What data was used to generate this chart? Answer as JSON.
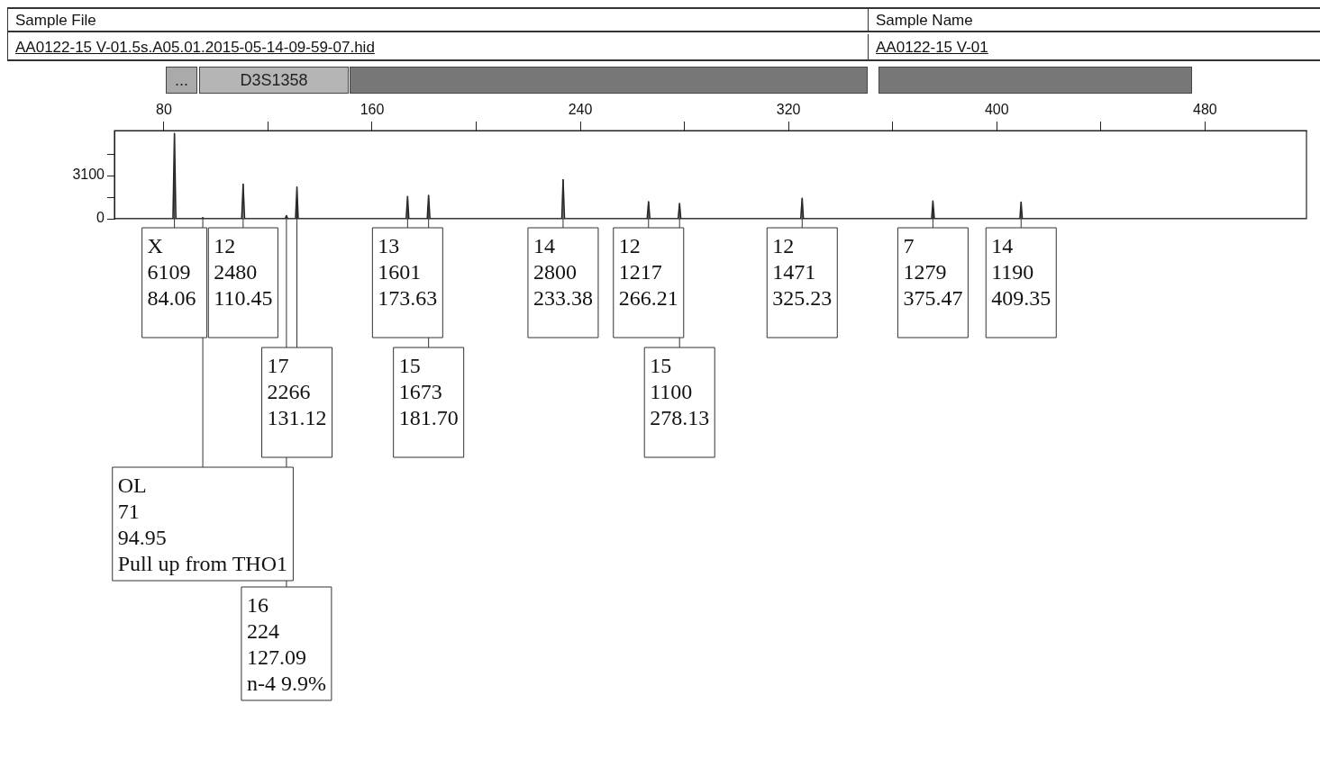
{
  "chart_data": {
    "type": "line",
    "annotations": [
      "Sample File",
      "AA0122-15 V-01.5s.A05.01.2015-05-14-09-59-07.hid",
      "Sample Name",
      "AA0122-15 V-01",
      "...",
      "D3S1358",
      {
        "text": "X\n6109\n84.06",
        "x": 84.06,
        "y": 6109
      },
      {
        "text": "12\n2480\n110.45",
        "x": 110.45,
        "y": 2480
      },
      {
        "text": "17\n2266\n131.12",
        "x": 131.12,
        "y": 2266
      },
      {
        "text": "13\n1601\n173.63",
        "x": 173.63,
        "y": 1601
      },
      {
        "text": "15\n1673\n181.70",
        "x": 181.7,
        "y": 1673
      },
      {
        "text": "14\n2800\n233.38",
        "x": 233.38,
        "y": 2800
      },
      {
        "text": "12\n1217\n266.21",
        "x": 266.21,
        "y": 1217
      },
      {
        "text": "15\n1100\n278.13",
        "x": 278.13,
        "y": 1100
      },
      {
        "text": "12\n1471\n325.23",
        "x": 325.23,
        "y": 1471
      },
      {
        "text": "7\n1279\n375.47",
        "x": 375.47,
        "y": 1279
      },
      {
        "text": "14\n1190\n409.35",
        "x": 409.35,
        "y": 1190
      },
      {
        "text": "OL\n71\n94.95\nPull up from THO1",
        "x": 94.95,
        "y": 71
      },
      {
        "text": "16\n224\n127.09\nn-4 9.9%",
        "x": 127.09,
        "y": 224
      }
    ],
    "series": [
      {
        "color": "#222222",
        "x": [
          61,
          83.5,
          84.06,
          84.6,
          94.5,
          94.95,
          95.4,
          109.9,
          110.45,
          111,
          126.6,
          127.09,
          127.6,
          130.6,
          131.12,
          131.6,
          173.1,
          173.63,
          174.1,
          181.2,
          181.7,
          182.2,
          232.9,
          233.38,
          233.9,
          265.7,
          266.21,
          266.7,
          277.6,
          278.13,
          278.6,
          324.7,
          325.23,
          325.7,
          375.0,
          375.47,
          376.0,
          408.9,
          409.35,
          409.8,
          519
        ],
        "values": [
          0,
          0,
          6109,
          0,
          0,
          71,
          0,
          0,
          2480,
          0,
          0,
          224,
          0,
          0,
          2266,
          0,
          0,
          1601,
          0,
          0,
          1673,
          0,
          0,
          2800,
          0,
          0,
          1217,
          0,
          0,
          1100,
          0,
          0,
          1471,
          0,
          0,
          1279,
          0,
          0,
          1190,
          0,
          0
        ]
      }
    ],
    "xlim": [
      61,
      519
    ],
    "xticks": [
      80,
      {
        "value": 120,
        "label": null
      },
      160,
      {
        "value": 200,
        "label": null
      },
      240,
      {
        "value": 280,
        "label": null
      },
      320,
      {
        "value": 360,
        "label": null
      },
      400,
      {
        "value": 440,
        "label": null
      },
      480
    ],
    "ylim": [
      0,
      6330
    ],
    "yticks": [
      0,
      {
        "value": 1550,
        "label": null
      },
      3100,
      {
        "value": 4650,
        "label": null
      }
    ],
    "grid": false,
    "legend": false,
    "marker": "none",
    "line_style": "solid"
  }
}
